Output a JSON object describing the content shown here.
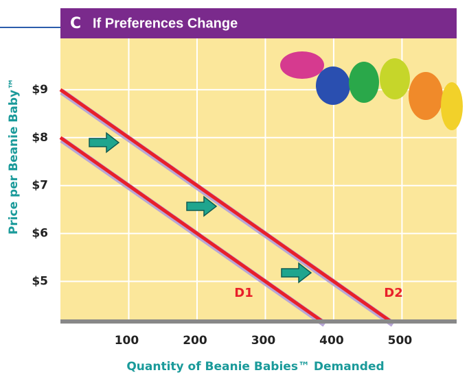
{
  "chart_data": {
    "type": "line",
    "panel_label": "C",
    "title": "If Preferences Change",
    "x_label": "Quantity of Beanie Babies™ Demanded",
    "y_label": "Price per Beanie Baby™",
    "xlim": [
      0,
      580
    ],
    "ylim": [
      4.15,
      10.07
    ],
    "xticks": [
      100,
      200,
      300,
      400,
      500
    ],
    "yticks": [
      {
        "value": 5,
        "label": "$5"
      },
      {
        "value": 6,
        "label": "$6"
      },
      {
        "value": 7,
        "label": "$7"
      },
      {
        "value": 8,
        "label": "$8"
      },
      {
        "value": 9,
        "label": "$9"
      }
    ],
    "grid": true,
    "series": [
      {
        "name": "D1",
        "color": "#e8202a",
        "x": [
          0,
          100,
          200,
          300,
          385
        ],
        "values": [
          8,
          7,
          6,
          5,
          4.15
        ]
      },
      {
        "name": "D2",
        "color": "#e8202a",
        "x": [
          0,
          100,
          200,
          300,
          400,
          485
        ],
        "values": [
          9,
          8,
          7,
          6,
          5,
          4.15
        ]
      }
    ]
  }
}
